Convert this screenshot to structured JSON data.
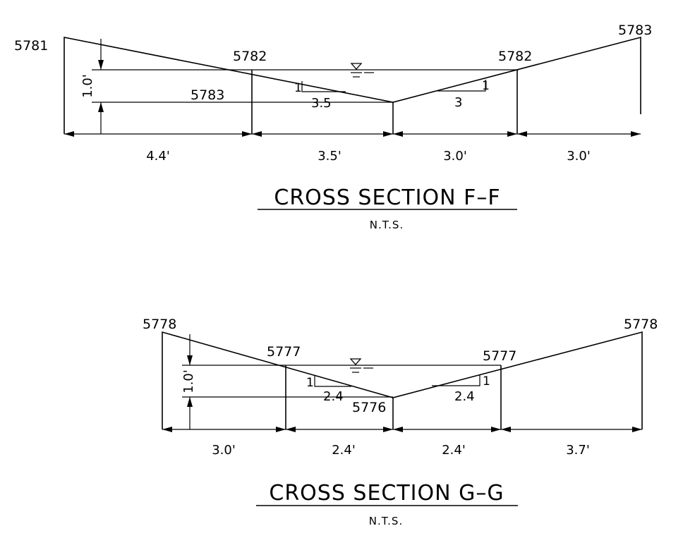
{
  "sections": [
    {
      "id": "F-F",
      "title": "CROSS SECTION F–F",
      "scale_note": "N.T.S.",
      "elevations": {
        "left_top": "5781",
        "left_bank": "5782",
        "invert": "5783",
        "right_bank": "5782",
        "right_top": "5783"
      },
      "depth": "1.0'",
      "left_slope": {
        "rise": "1",
        "run": "3.5"
      },
      "right_slope": {
        "rise": "1",
        "run": "3"
      },
      "widths": [
        "4.4'",
        "3.5'",
        "3.0'",
        "3.0'"
      ]
    },
    {
      "id": "G-G",
      "title": "CROSS SECTION G–G",
      "scale_note": "N.T.S.",
      "elevations": {
        "left_top": "5778",
        "left_bank": "5777",
        "invert": "5776",
        "right_bank": "5777",
        "right_top": "5778"
      },
      "depth": "1.0'",
      "left_slope": {
        "rise": "1",
        "run": "2.4"
      },
      "right_slope": {
        "rise": "1",
        "run": "2.4"
      },
      "widths": [
        "3.0'",
        "2.4'",
        "2.4'",
        "3.7'"
      ]
    }
  ]
}
